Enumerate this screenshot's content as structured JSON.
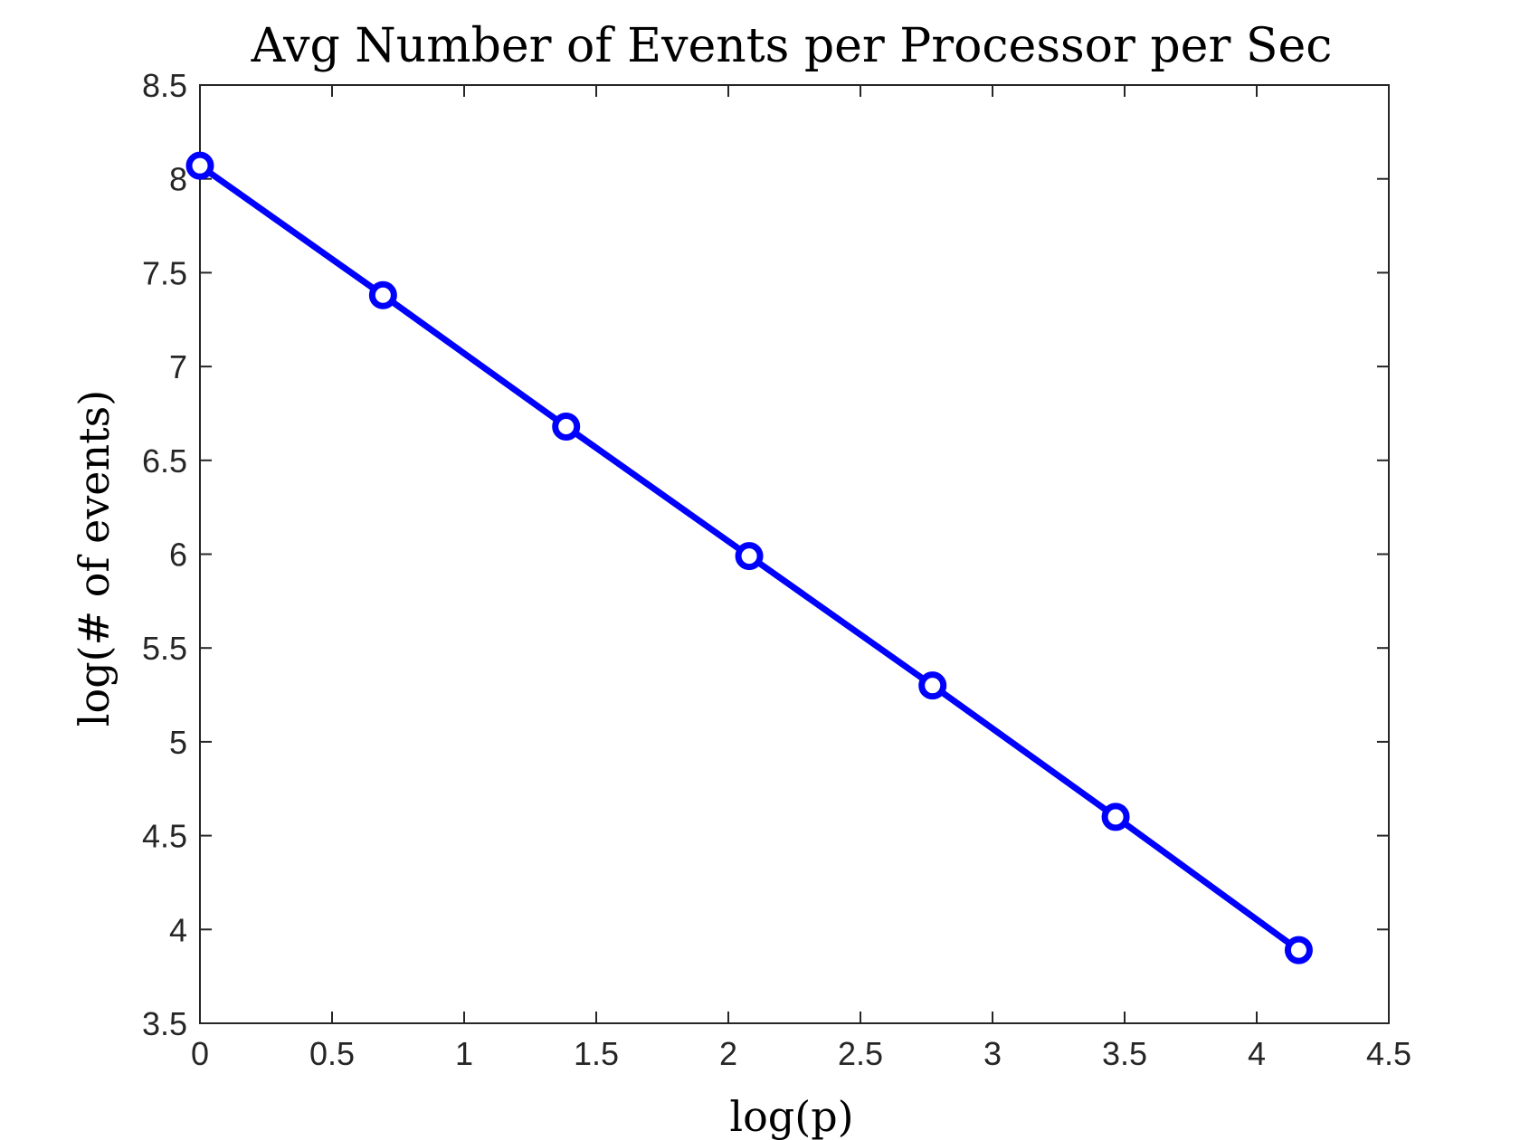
{
  "chart_data": {
    "type": "line",
    "title": "Avg Number of Events per Processor per Sec",
    "xlabel": "log(p)",
    "ylabel": "log(# of events)",
    "xlim": [
      0,
      4.5
    ],
    "ylim": [
      3.5,
      8.5
    ],
    "xticks": [
      0,
      0.5,
      1,
      1.5,
      2,
      2.5,
      3,
      3.5,
      4,
      4.5
    ],
    "xtick_labels": [
      "0",
      "0.5",
      "1",
      "1.5",
      "2",
      "2.5",
      "3",
      "3.5",
      "4",
      "4.5"
    ],
    "yticks": [
      3.5,
      4,
      4.5,
      5,
      5.5,
      6,
      6.5,
      7,
      7.5,
      8,
      8.5
    ],
    "ytick_labels": [
      "3.5",
      "4",
      "4.5",
      "5",
      "5.5",
      "6",
      "6.5",
      "7",
      "7.5",
      "8",
      "8.5"
    ],
    "grid": false,
    "legend": null,
    "series": [
      {
        "color": "#0000ff",
        "marker": "circle",
        "x": [
          0,
          0.693,
          1.386,
          2.079,
          2.773,
          3.466,
          4.159
        ],
        "y": [
          8.07,
          7.38,
          6.68,
          5.99,
          5.3,
          4.6,
          3.89
        ]
      }
    ]
  }
}
